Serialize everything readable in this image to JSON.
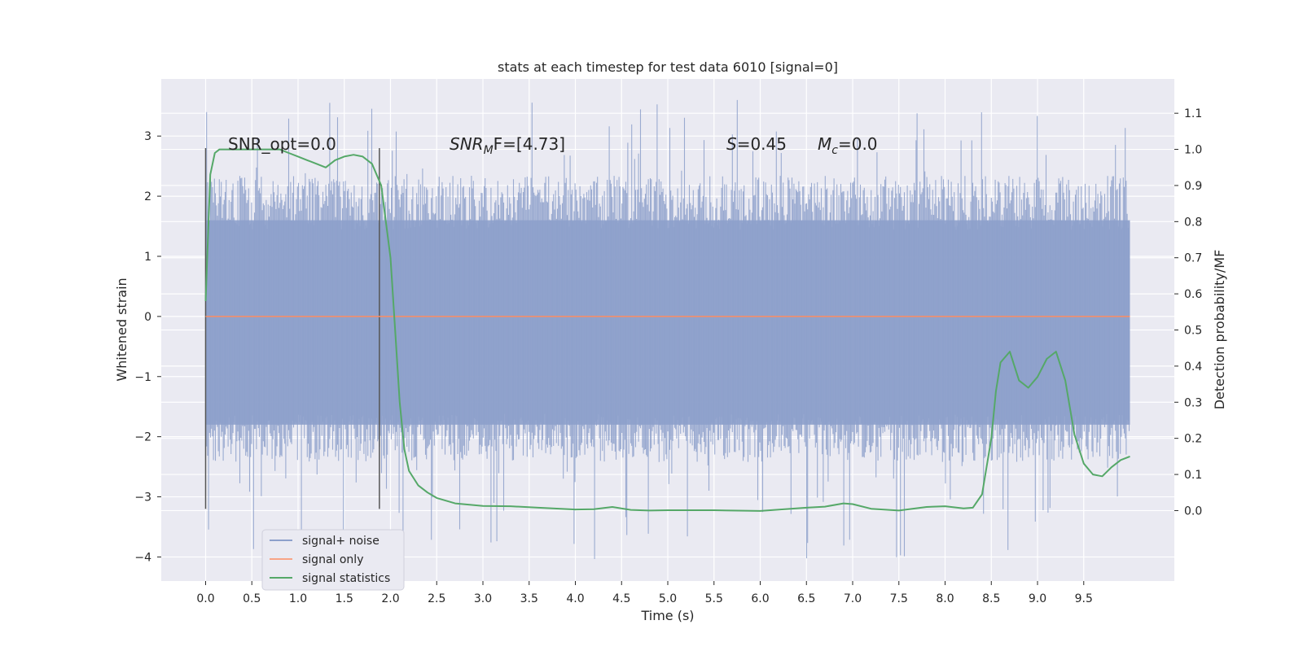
{
  "chart_data": {
    "type": "line",
    "title": "stats at each timestep for test data 6010 [signal=0]",
    "xlabel": "Time (s)",
    "ylabel_left": "Whitened strain",
    "ylabel_right": "Detection probability/MF",
    "x_ticks": [
      "0.0",
      "0.5",
      "1.0",
      "1.5",
      "2.0",
      "2.5",
      "3.0",
      "3.5",
      "4.0",
      "4.5",
      "5.0",
      "5.5",
      "6.0",
      "6.5",
      "7.0",
      "7.5",
      "8.0",
      "8.5",
      "9.0",
      "9.5"
    ],
    "y_left_ticks": [
      "3",
      "2",
      "1",
      "0",
      "−1",
      "−2",
      "−3",
      "−4"
    ],
    "y_right_ticks": [
      "1.1",
      "1.0",
      "0.9",
      "0.8",
      "0.7",
      "0.6",
      "0.5",
      "0.4",
      "0.3",
      "0.2",
      "0.1",
      "0.0"
    ],
    "xlim": [
      -0.48,
      10.48
    ],
    "ylim_left": [
      -4.4,
      3.95
    ],
    "ylim_right": [
      -0.195,
      1.195
    ],
    "grid": true,
    "legend_position": "lower-left",
    "annotations": {
      "snr_opt": "SNR_opt=0.0",
      "snr_mf_base": "SNR",
      "snr_mf_sub": "M",
      "snr_mf_rest": "F=[4.73]",
      "s_var": "S",
      "s_val": "=0.45",
      "mc_var": "M",
      "mc_sub": "c",
      "mc_val": "=0.0"
    },
    "vertical_markers": [
      0.0,
      1.88
    ],
    "series": [
      {
        "name": "signal+ noise",
        "color": "#8da0cb",
        "description_type": "noise band",
        "x_range": [
          0.0,
          10.0
        ],
        "core_range": [
          -1.8,
          1.6
        ],
        "typical_peak_max": 3.6,
        "typical_trough_min": -4.05
      },
      {
        "name": "signal only",
        "color": "#fc8d62",
        "x": [
          0.0,
          10.0
        ],
        "y": [
          0.0,
          0.0
        ]
      },
      {
        "name": "signal statistics",
        "color": "#55a868",
        "axis": "right",
        "x": [
          0.0,
          0.05,
          0.1,
          0.15,
          0.2,
          0.3,
          0.4,
          0.5,
          0.6,
          0.7,
          0.8,
          0.9,
          1.0,
          1.1,
          1.2,
          1.3,
          1.4,
          1.5,
          1.6,
          1.7,
          1.8,
          1.9,
          2.0,
          2.05,
          2.1,
          2.15,
          2.2,
          2.3,
          2.4,
          2.5,
          2.7,
          3.0,
          3.3,
          3.6,
          4.0,
          4.2,
          4.4,
          4.6,
          4.8,
          5.0,
          5.5,
          6.0,
          6.5,
          6.7,
          6.9,
          7.0,
          7.2,
          7.5,
          7.8,
          8.0,
          8.2,
          8.3,
          8.4,
          8.5,
          8.55,
          8.6,
          8.7,
          8.8,
          8.9,
          9.0,
          9.1,
          9.2,
          9.3,
          9.4,
          9.5,
          9.6,
          9.7,
          9.8,
          9.9,
          10.0
        ],
        "y": [
          0.58,
          0.93,
          0.99,
          1.0,
          1.0,
          1.0,
          1.0,
          1.0,
          1.0,
          1.0,
          1.0,
          0.99,
          0.98,
          0.97,
          0.96,
          0.95,
          0.97,
          0.98,
          0.985,
          0.98,
          0.96,
          0.9,
          0.7,
          0.5,
          0.3,
          0.17,
          0.11,
          0.07,
          0.05,
          0.035,
          0.02,
          0.013,
          0.012,
          0.008,
          0.003,
          0.004,
          0.01,
          0.002,
          0.0,
          0.001,
          0.001,
          -0.001,
          0.008,
          0.011,
          0.02,
          0.018,
          0.005,
          0.0,
          0.01,
          0.012,
          0.006,
          0.008,
          0.045,
          0.2,
          0.33,
          0.41,
          0.44,
          0.36,
          0.34,
          0.37,
          0.42,
          0.44,
          0.36,
          0.21,
          0.13,
          0.1,
          0.095,
          0.12,
          0.14,
          0.15
        ]
      }
    ]
  }
}
